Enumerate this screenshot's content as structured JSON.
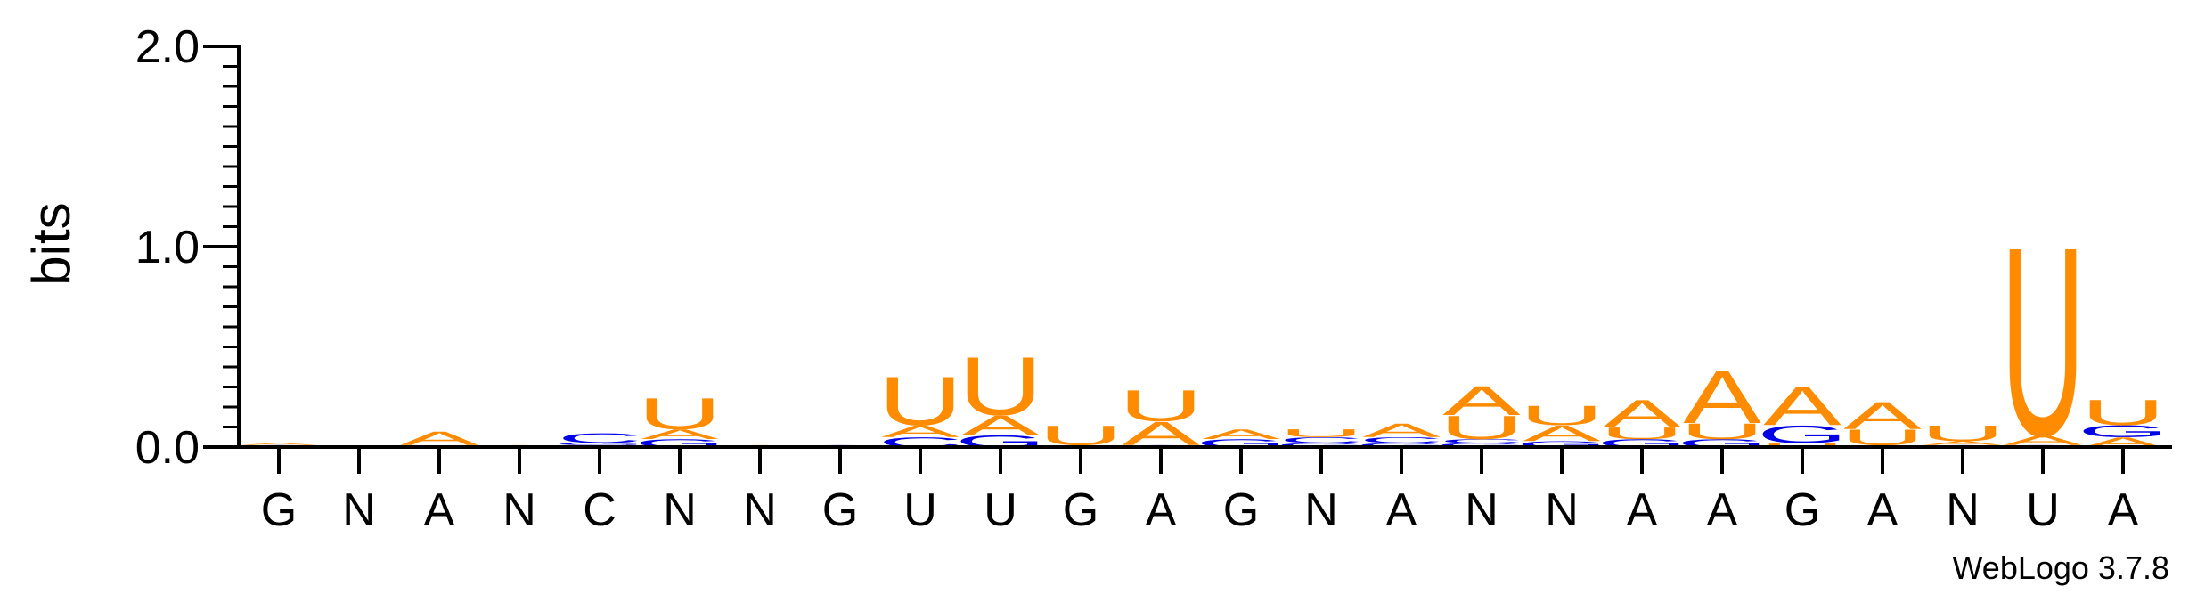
{
  "chart_data": {
    "type": "sequence-logo",
    "ylabel": "bits",
    "ylim": [
      0,
      2.0
    ],
    "yticks": [
      "0.0",
      "1.0",
      "2.0"
    ],
    "consensus": [
      "G",
      "N",
      "A",
      "N",
      "C",
      "N",
      "N",
      "G",
      "U",
      "U",
      "G",
      "A",
      "G",
      "N",
      "A",
      "N",
      "N",
      "A",
      "A",
      "G",
      "A",
      "N",
      "U",
      "A"
    ],
    "colors": {
      "A": "#ff8c00",
      "U": "#ff8c00",
      "G": "#0000e6",
      "C": "#0000e6"
    },
    "columns": [
      {
        "pos": 1,
        "stack": [
          [
            "G",
            0.01
          ],
          [
            "A",
            0.01
          ]
        ]
      },
      {
        "pos": 2,
        "stack": []
      },
      {
        "pos": 3,
        "stack": [
          [
            "U",
            0.01
          ],
          [
            "A",
            0.07
          ]
        ]
      },
      {
        "pos": 4,
        "stack": [
          [
            "A",
            0.01
          ]
        ]
      },
      {
        "pos": 5,
        "stack": [
          [
            "U",
            0.01
          ],
          [
            "G",
            0.01
          ],
          [
            "C",
            0.05
          ]
        ]
      },
      {
        "pos": 6,
        "stack": [
          [
            "G",
            0.04
          ],
          [
            "A",
            0.05
          ],
          [
            "U",
            0.16
          ]
        ]
      },
      {
        "pos": 7,
        "stack": [
          [
            "A",
            0.01
          ]
        ]
      },
      {
        "pos": 8,
        "stack": [
          [
            "G",
            0.01
          ]
        ]
      },
      {
        "pos": 9,
        "stack": [
          [
            "C",
            0.05
          ],
          [
            "A",
            0.06
          ],
          [
            "U",
            0.25
          ]
        ]
      },
      {
        "pos": 10,
        "stack": [
          [
            "G",
            0.06
          ],
          [
            "A",
            0.1
          ],
          [
            "U",
            0.3
          ]
        ]
      },
      {
        "pos": 11,
        "stack": [
          [
            "A",
            0.01
          ],
          [
            "U",
            0.1
          ]
        ]
      },
      {
        "pos": 12,
        "stack": [
          [
            "G",
            0.01
          ],
          [
            "A",
            0.12
          ],
          [
            "U",
            0.16
          ]
        ]
      },
      {
        "pos": 13,
        "stack": [
          [
            "G",
            0.04
          ],
          [
            "A",
            0.05
          ]
        ]
      },
      {
        "pos": 14,
        "stack": [
          [
            "G",
            0.02
          ],
          [
            "C",
            0.03
          ],
          [
            "U",
            0.04
          ]
        ]
      },
      {
        "pos": 15,
        "stack": [
          [
            "G",
            0.02
          ],
          [
            "C",
            0.03
          ],
          [
            "A",
            0.07
          ]
        ]
      },
      {
        "pos": 16,
        "stack": [
          [
            "G",
            0.02
          ],
          [
            "C",
            0.02
          ],
          [
            "U",
            0.12
          ],
          [
            "A",
            0.15
          ]
        ]
      },
      {
        "pos": 17,
        "stack": [
          [
            "G",
            0.03
          ],
          [
            "A",
            0.08
          ],
          [
            "U",
            0.1
          ]
        ]
      },
      {
        "pos": 18,
        "stack": [
          [
            "G",
            0.04
          ],
          [
            "U",
            0.06
          ],
          [
            "A",
            0.14
          ]
        ]
      },
      {
        "pos": 19,
        "stack": [
          [
            "G",
            0.04
          ],
          [
            "U",
            0.08
          ],
          [
            "A",
            0.27
          ]
        ]
      },
      {
        "pos": 20,
        "stack": [
          [
            "U",
            0.02
          ],
          [
            "G",
            0.09
          ],
          [
            "A",
            0.2
          ]
        ]
      },
      {
        "pos": 21,
        "stack": [
          [
            "G",
            0.01
          ],
          [
            "U",
            0.08
          ],
          [
            "A",
            0.14
          ]
        ]
      },
      {
        "pos": 22,
        "stack": [
          [
            "G",
            0.01
          ],
          [
            "A",
            0.02
          ],
          [
            "U",
            0.08
          ]
        ]
      },
      {
        "pos": 23,
        "stack": [
          [
            "G",
            0.01
          ],
          [
            "A",
            0.05
          ],
          [
            "U",
            0.97
          ]
        ]
      },
      {
        "pos": 24,
        "stack": [
          [
            "A",
            0.05
          ],
          [
            "G",
            0.06
          ],
          [
            "U",
            0.13
          ]
        ]
      }
    ]
  },
  "footer": {
    "credit": "WebLogo 3.7.8"
  }
}
